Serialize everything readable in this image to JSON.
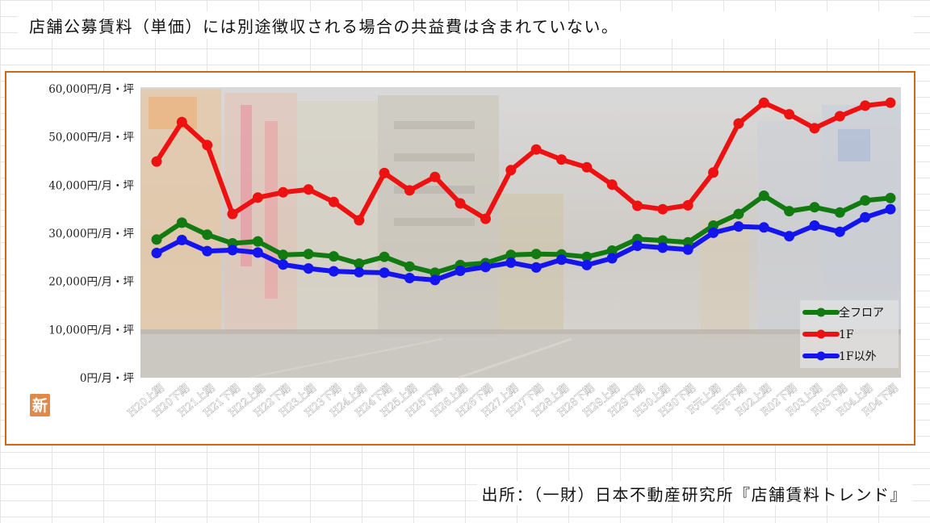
{
  "note": "店舗公募賃料（単価）には別途徴収される場合の共益費は含まれていない。",
  "source": "出所：（一財）日本不動産研究所『店舗賃料トレンド』",
  "badge": "新",
  "colors": {
    "frame": "#cc6a1a",
    "all_floor": "#117a11",
    "first_floor": "#ee1111",
    "other_floors": "#1414ee"
  },
  "chart_data": {
    "type": "line",
    "background": "faded night-street photograph",
    "categories": [
      "H20上期",
      "H20下期",
      "H21上期",
      "H21下期",
      "H22上期",
      "H22下期",
      "H23上期",
      "H23下期",
      "H24上期",
      "H24下期",
      "H25上期",
      "H25下期",
      "H26上期",
      "H26下期",
      "H27上期",
      "H27下期",
      "H28上期",
      "H28下期",
      "H29上期",
      "H29下期",
      "H30上期",
      "H30下期",
      "R元上期",
      "R元下期",
      "R02上期",
      "R02下期",
      "R03上期",
      "R03下期",
      "R04上期",
      "R04下期"
    ],
    "yticks": [
      "0円/月・坪",
      "10,000円/月・坪",
      "20,000円/月・坪",
      "30,000円/月・坪",
      "40,000円/月・坪",
      "50,000円/月・坪",
      "60,000円/月・坪"
    ],
    "ylim": [
      0,
      60000
    ],
    "legend_position": "bottom-right",
    "series": [
      {
        "name": "全フロア",
        "color": "#117a11",
        "values": [
          28700,
          32200,
          29700,
          27900,
          28300,
          25500,
          25700,
          25200,
          23700,
          25100,
          23100,
          21800,
          23400,
          23800,
          25500,
          25700,
          25600,
          25100,
          26400,
          28800,
          28500,
          28100,
          31600,
          34000,
          37800,
          34600,
          35400,
          34300,
          36800,
          37300
        ]
      },
      {
        "name": "1F",
        "color": "#ee1111",
        "values": [
          44900,
          53100,
          48300,
          34000,
          37400,
          38500,
          39100,
          36500,
          32700,
          42500,
          38900,
          41700,
          36200,
          33000,
          43100,
          47400,
          45300,
          43700,
          40100,
          35700,
          35000,
          35800,
          42600,
          52800,
          57100,
          54700,
          51800,
          54300,
          56500,
          57100
        ]
      },
      {
        "name": "1F以外",
        "color": "#1414ee",
        "values": [
          25900,
          28600,
          26300,
          26500,
          26000,
          23500,
          22700,
          22100,
          21900,
          21800,
          20700,
          20300,
          22200,
          23000,
          23900,
          22900,
          24500,
          23400,
          24800,
          27400,
          27000,
          26600,
          30100,
          31400,
          31200,
          29400,
          31600,
          30300,
          33300,
          35000
        ]
      }
    ]
  }
}
